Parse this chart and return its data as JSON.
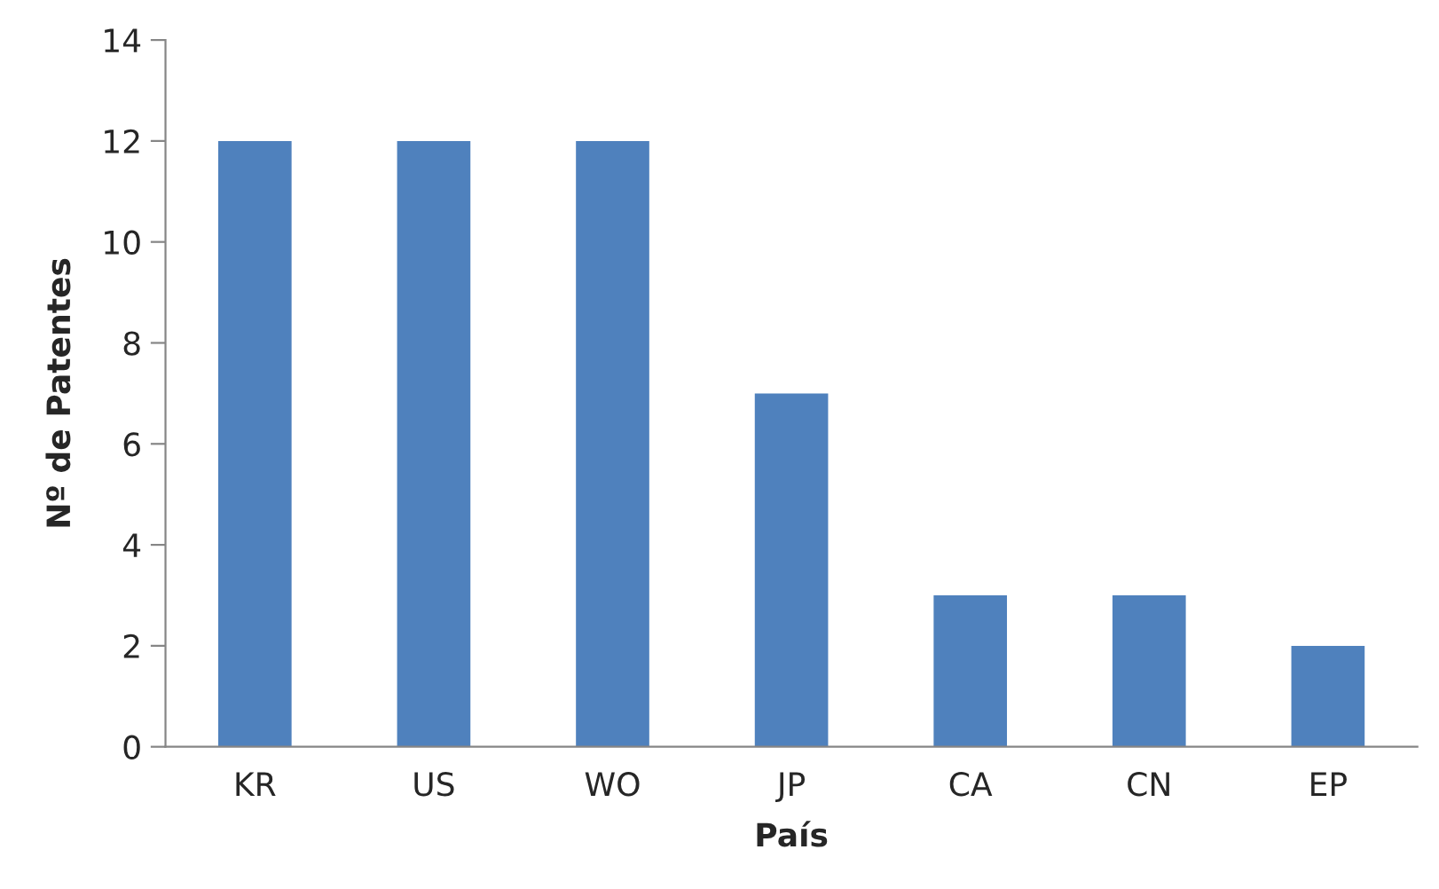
{
  "chart_data": {
    "type": "bar",
    "xlabel": "País",
    "ylabel": "Nº de Patentes",
    "categories": [
      "KR",
      "US",
      "WO",
      "JP",
      "CA",
      "CN",
      "EP"
    ],
    "values": [
      12,
      12,
      12,
      7,
      3,
      3,
      2
    ],
    "color": "#4f81bd",
    "ylim": [
      0,
      14
    ],
    "yticks": [
      0,
      2,
      4,
      6,
      8,
      10,
      12,
      14
    ],
    "grid": false,
    "legend": false
  }
}
